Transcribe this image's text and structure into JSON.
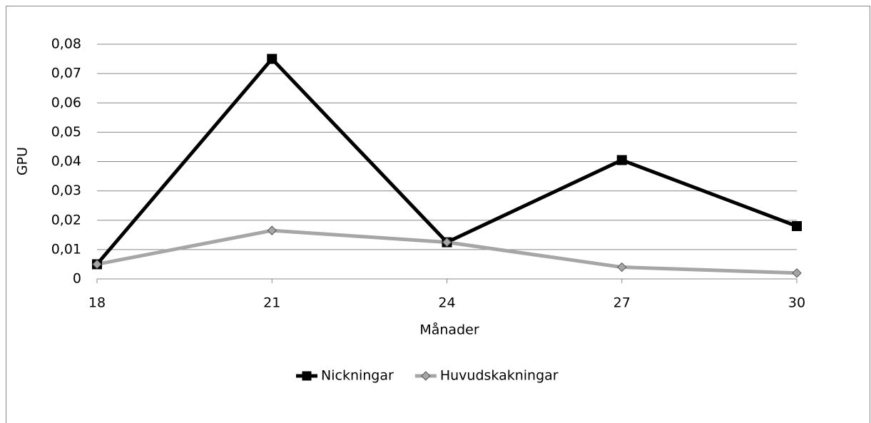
{
  "chart_data": {
    "type": "line",
    "x": [
      18,
      21,
      24,
      27,
      30
    ],
    "xlim": [
      18,
      30
    ],
    "xticks": [
      18,
      21,
      24,
      27,
      30
    ],
    "ylim": [
      0,
      0.08
    ],
    "yticks": [
      0,
      {
        "value": 0.01,
        "label": "0,01"
      },
      {
        "value": 0.02,
        "label": "0,02"
      },
      {
        "value": 0.03,
        "label": "0,03"
      },
      {
        "value": 0.04,
        "label": "0,04"
      },
      {
        "value": 0.05,
        "label": "0,05"
      },
      {
        "value": 0.06,
        "label": "0,06"
      },
      {
        "value": 0.07,
        "label": "0,07"
      },
      {
        "value": 0.08,
        "label": "0,08"
      }
    ],
    "xlabel": "Månader",
    "ylabel": "GPU",
    "grid": true,
    "legend": "bottom",
    "series": [
      {
        "name": "Nickningar",
        "color": "#000000",
        "marker": "square",
        "values": [
          0.005,
          0.075,
          0.0125,
          0.0405,
          0.018
        ]
      },
      {
        "name": "Huvudskakningar",
        "color": "#a6a6a6",
        "marker": "diamond",
        "values": [
          0.005,
          0.0165,
          0.0125,
          0.004,
          0.002
        ]
      }
    ]
  }
}
